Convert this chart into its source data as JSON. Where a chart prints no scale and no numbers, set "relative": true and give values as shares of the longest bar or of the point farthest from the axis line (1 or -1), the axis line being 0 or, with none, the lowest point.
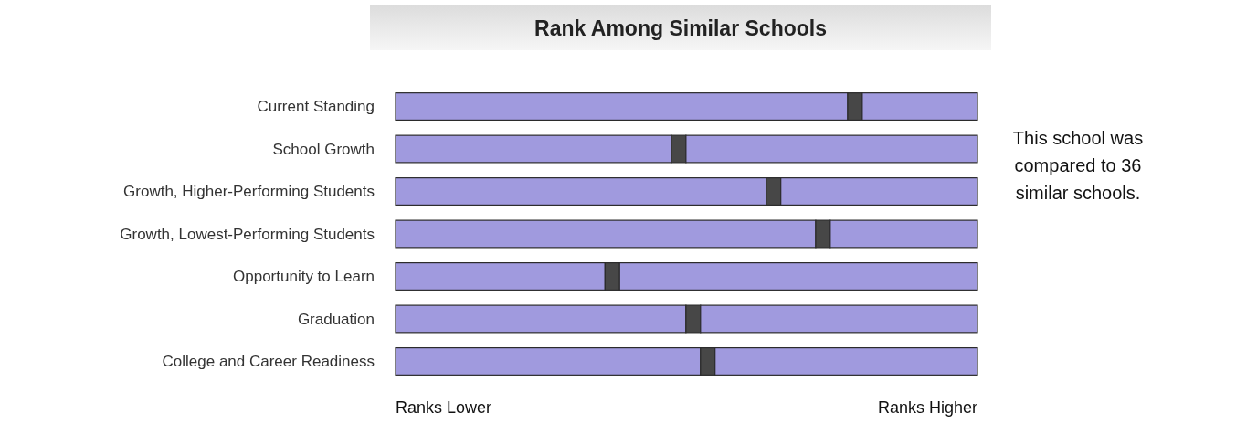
{
  "chart_data": {
    "type": "bar",
    "orientation": "horizontal",
    "stacked": true,
    "relative": true,
    "title": "Rank Among Similar Schools",
    "categories": [
      "Current Standing",
      "School Growth",
      "Growth, Higher-Performing Students",
      "Growth, Lowest-Performing Students",
      "Opportunity to Learn",
      "Graduation",
      "College and Career Readiness"
    ],
    "series": [
      {
        "color": "#a09ade",
        "values": [
          0.777,
          0.474,
          0.637,
          0.722,
          0.36,
          0.499,
          0.524
        ]
      },
      {
        "color": "#474747",
        "values": [
          0.025,
          0.025,
          0.025,
          0.025,
          0.025,
          0.025,
          0.025
        ]
      },
      {
        "color": "#a09ade",
        "values": [
          0.198,
          0.501,
          0.338,
          0.253,
          0.615,
          0.476,
          0.451
        ]
      }
    ],
    "annotations": [
      "This school was compared to 36 similar schools.",
      "Ranks Lower",
      "Ranks Higher"
    ]
  }
}
